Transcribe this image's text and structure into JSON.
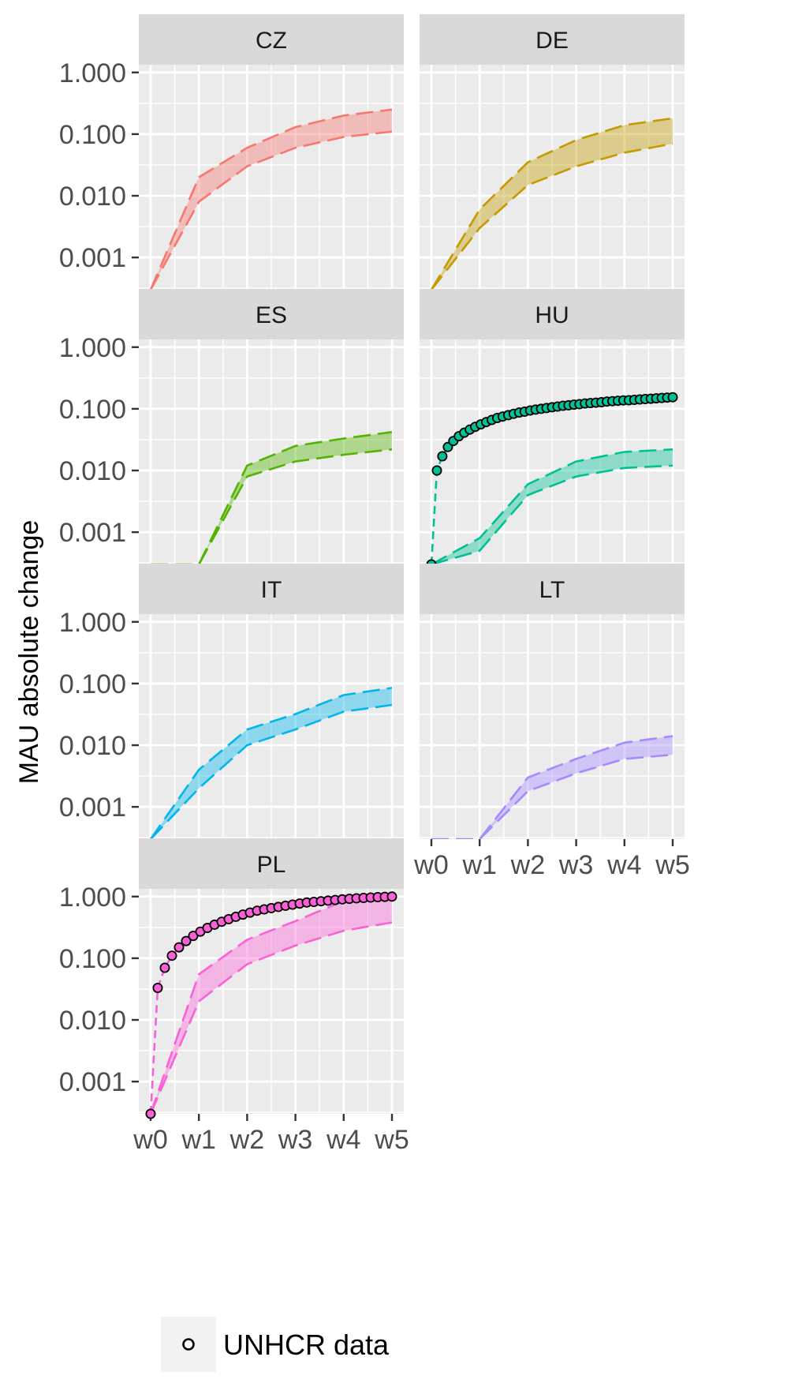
{
  "chart_data": {
    "type": "line",
    "facet_type": "wrap",
    "ylabel": "MAU absolute change",
    "xlabel": "",
    "y_scale": "log10",
    "ylim": [
      0.0003,
      1.0
    ],
    "y_ticks": [
      0.001,
      0.01,
      0.1,
      1.0
    ],
    "y_tick_labels": [
      "0.001",
      "0.010",
      "0.100",
      "1.000"
    ],
    "x_categories": [
      "w0",
      "w1",
      "w2",
      "w3",
      "w4",
      "w5"
    ],
    "grid": true,
    "legend": {
      "position": "bottom-left",
      "entries": [
        {
          "label": "UNHCR data",
          "symbol": "open-circle"
        }
      ]
    },
    "panels": [
      {
        "label": "CZ",
        "color": "#F8766D",
        "band_upper": [
          0.0003,
          0.02,
          0.06,
          0.13,
          0.2,
          0.25
        ],
        "band_lower": [
          0.0003,
          0.008,
          0.03,
          0.06,
          0.09,
          0.11
        ],
        "unhcr": []
      },
      {
        "label": "DE",
        "color": "#C49A00",
        "band_upper": [
          0.0003,
          0.006,
          0.035,
          0.08,
          0.14,
          0.18
        ],
        "band_lower": [
          0.0003,
          0.003,
          0.015,
          0.03,
          0.05,
          0.07
        ],
        "unhcr": []
      },
      {
        "label": "ES",
        "color": "#53B400",
        "band_upper": [
          0.0003,
          0.0003,
          0.012,
          0.025,
          0.033,
          0.042
        ],
        "band_lower": [
          0.0003,
          0.0003,
          0.008,
          0.014,
          0.018,
          0.022
        ],
        "unhcr": []
      },
      {
        "label": "HU",
        "color": "#00C094",
        "band_upper": [
          0.0003,
          0.0008,
          0.006,
          0.014,
          0.02,
          0.022
        ],
        "band_lower": [
          0.0003,
          0.0005,
          0.004,
          0.008,
          0.011,
          0.012
        ],
        "unhcr": [
          0.0003,
          0.01,
          0.017,
          0.024,
          0.03,
          0.036,
          0.041,
          0.046,
          0.051,
          0.056,
          0.061,
          0.066,
          0.071,
          0.075,
          0.079,
          0.083,
          0.087,
          0.09,
          0.094,
          0.097,
          0.1,
          0.103,
          0.106,
          0.109,
          0.112,
          0.114,
          0.117,
          0.119,
          0.122,
          0.124,
          0.126,
          0.128,
          0.131,
          0.133,
          0.135,
          0.137,
          0.138,
          0.14,
          0.142,
          0.144,
          0.146,
          0.148,
          0.15,
          0.152,
          0.154
        ]
      },
      {
        "label": "IT",
        "color": "#00B6EB",
        "band_upper": [
          0.0003,
          0.004,
          0.018,
          0.032,
          0.065,
          0.085
        ],
        "band_lower": [
          0.0003,
          0.002,
          0.01,
          0.018,
          0.035,
          0.045
        ],
        "unhcr": []
      },
      {
        "label": "LT",
        "color": "#A58AFF",
        "band_upper": [
          0.0003,
          0.0003,
          0.003,
          0.006,
          0.011,
          0.014
        ],
        "band_lower": [
          0.0003,
          0.0003,
          0.0018,
          0.0035,
          0.006,
          0.007
        ],
        "unhcr": []
      },
      {
        "label": "PL",
        "color": "#FB61D7",
        "band_upper": [
          0.0003,
          0.055,
          0.2,
          0.4,
          0.85,
          1.0
        ],
        "band_lower": [
          0.0003,
          0.02,
          0.08,
          0.16,
          0.28,
          0.38
        ],
        "unhcr": [
          0.0003,
          0.033,
          0.07,
          0.11,
          0.15,
          0.19,
          0.23,
          0.27,
          0.31,
          0.35,
          0.39,
          0.43,
          0.47,
          0.51,
          0.55,
          0.59,
          0.62,
          0.65,
          0.68,
          0.71,
          0.74,
          0.77,
          0.8,
          0.82,
          0.84,
          0.86,
          0.88,
          0.9,
          0.92,
          0.935,
          0.95,
          0.965,
          0.98,
          0.99,
          1.0
        ]
      }
    ]
  }
}
